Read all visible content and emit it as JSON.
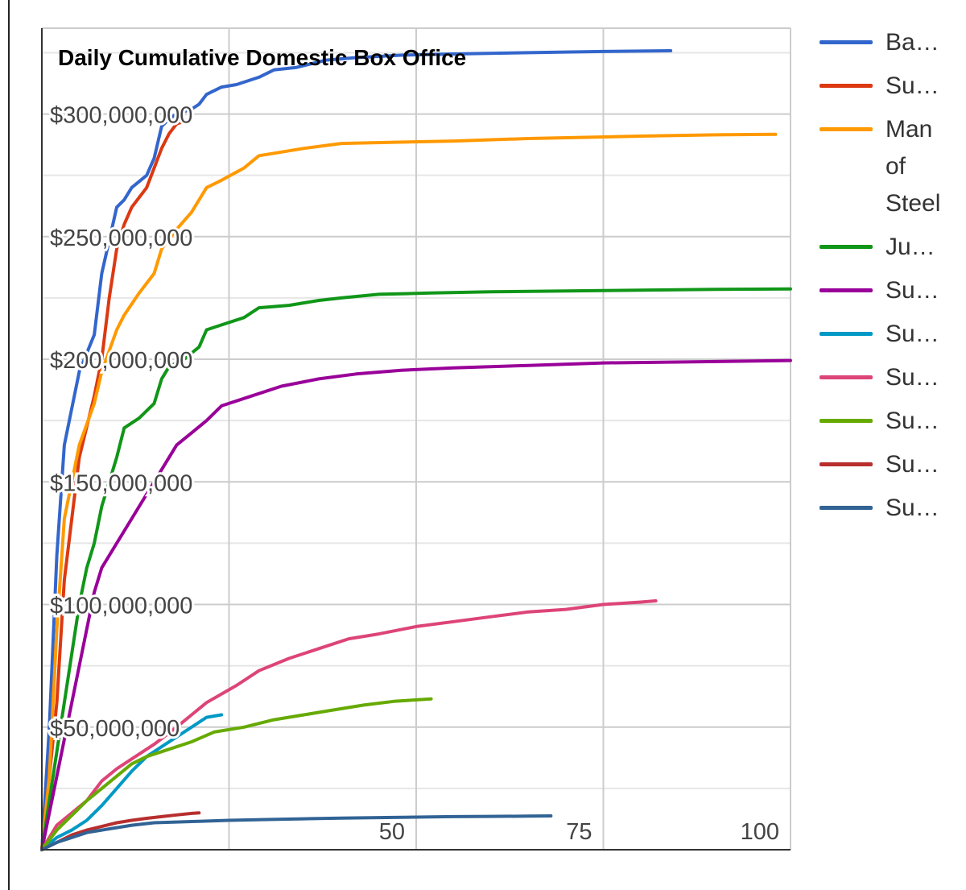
{
  "chart_data": {
    "type": "line",
    "title": "Daily Cumulative Domestic Box Office",
    "xlabel": "",
    "ylabel": "",
    "xlim": [
      0,
      100
    ],
    "ylim": [
      0,
      335000000
    ],
    "x_ticks": [
      {
        "value": 50,
        "label": "50"
      },
      {
        "value": 75,
        "label": "75"
      },
      {
        "value": 100,
        "label": "100"
      }
    ],
    "y_ticks": [
      {
        "value": 50000000,
        "label": "$50,000,000"
      },
      {
        "value": 100000000,
        "label": "$100,000,000"
      },
      {
        "value": 150000000,
        "label": "$150,000,000"
      },
      {
        "value": 200000000,
        "label": "$200,000,000"
      },
      {
        "value": 250000000,
        "label": "$250,000,000"
      },
      {
        "value": 300000000,
        "label": "$300,000,000"
      }
    ],
    "x_gridlines": [
      25,
      50,
      75,
      100
    ],
    "y_gridlines": [
      25000000,
      50000000,
      75000000,
      100000000,
      125000000,
      150000000,
      175000000,
      200000000,
      225000000,
      250000000,
      275000000,
      300000000,
      325000000
    ],
    "grid": true,
    "legend_position": "right",
    "series": [
      {
        "name": "Ba…",
        "color": "#3366cc",
        "points": [
          [
            0,
            0
          ],
          [
            1,
            50000000
          ],
          [
            2,
            120000000
          ],
          [
            3,
            165000000
          ],
          [
            5,
            195000000
          ],
          [
            7,
            210000000
          ],
          [
            8,
            235000000
          ],
          [
            10,
            262000000
          ],
          [
            11,
            265000000
          ],
          [
            12,
            270000000
          ],
          [
            14,
            275000000
          ],
          [
            15,
            282000000
          ],
          [
            16,
            295000000
          ],
          [
            17,
            298000000
          ],
          [
            18,
            300000000
          ],
          [
            20,
            302000000
          ],
          [
            21,
            304000000
          ],
          [
            22,
            308000000
          ],
          [
            24,
            311000000
          ],
          [
            26,
            312000000
          ],
          [
            29,
            315000000
          ],
          [
            31,
            318000000
          ],
          [
            34,
            319000000
          ],
          [
            38,
            322000000
          ],
          [
            42,
            323000000
          ],
          [
            48,
            324000000
          ],
          [
            55,
            324500000
          ],
          [
            65,
            325000000
          ],
          [
            75,
            325500000
          ],
          [
            84,
            325800000
          ]
        ]
      },
      {
        "name": "Su…",
        "color": "#dc3912",
        "points": [
          [
            0,
            0
          ],
          [
            2,
            60000000
          ],
          [
            3,
            110000000
          ],
          [
            5,
            160000000
          ],
          [
            7,
            185000000
          ],
          [
            8,
            200000000
          ],
          [
            9,
            225000000
          ],
          [
            10,
            245000000
          ],
          [
            11,
            255000000
          ],
          [
            12,
            262000000
          ],
          [
            14,
            270000000
          ],
          [
            15,
            278000000
          ],
          [
            16,
            286000000
          ],
          [
            17,
            292000000
          ],
          [
            18,
            296000000
          ],
          [
            19,
            297000000
          ]
        ]
      },
      {
        "name": "Man of Steel",
        "color": "#ff9900",
        "points": [
          [
            0,
            0
          ],
          [
            1,
            30000000
          ],
          [
            2,
            90000000
          ],
          [
            3,
            135000000
          ],
          [
            5,
            165000000
          ],
          [
            7,
            182000000
          ],
          [
            8,
            195000000
          ],
          [
            10,
            212000000
          ],
          [
            11,
            218000000
          ],
          [
            13,
            227000000
          ],
          [
            15,
            235000000
          ],
          [
            16,
            245000000
          ],
          [
            18,
            253000000
          ],
          [
            20,
            260000000
          ],
          [
            22,
            270000000
          ],
          [
            24,
            273000000
          ],
          [
            27,
            278000000
          ],
          [
            29,
            283000000
          ],
          [
            31,
            284000000
          ],
          [
            35,
            286000000
          ],
          [
            40,
            288000000
          ],
          [
            47,
            288500000
          ],
          [
            55,
            289000000
          ],
          [
            65,
            290000000
          ],
          [
            80,
            291000000
          ],
          [
            90,
            291500000
          ],
          [
            98,
            291700000
          ]
        ]
      },
      {
        "name": "Ju…",
        "color": "#109618",
        "points": [
          [
            0,
            0
          ],
          [
            2,
            40000000
          ],
          [
            4,
            80000000
          ],
          [
            5,
            100000000
          ],
          [
            6,
            115000000
          ],
          [
            7,
            125000000
          ],
          [
            8,
            140000000
          ],
          [
            10,
            160000000
          ],
          [
            11,
            172000000
          ],
          [
            13,
            176000000
          ],
          [
            15,
            182000000
          ],
          [
            16,
            192000000
          ],
          [
            17,
            197000000
          ],
          [
            19,
            200000000
          ],
          [
            21,
            205000000
          ],
          [
            22,
            212000000
          ],
          [
            24,
            214000000
          ],
          [
            27,
            217000000
          ],
          [
            29,
            221000000
          ],
          [
            33,
            222000000
          ],
          [
            37,
            224000000
          ],
          [
            40,
            225000000
          ],
          [
            45,
            226500000
          ],
          [
            52,
            227000000
          ],
          [
            60,
            227500000
          ],
          [
            75,
            228000000
          ],
          [
            90,
            228500000
          ],
          [
            100,
            228700000
          ]
        ]
      },
      {
        "name": "Su…",
        "color": "#990099",
        "points": [
          [
            0,
            0
          ],
          [
            1,
            15000000
          ],
          [
            2,
            30000000
          ],
          [
            3,
            45000000
          ],
          [
            4,
            60000000
          ],
          [
            5,
            75000000
          ],
          [
            6,
            90000000
          ],
          [
            7,
            105000000
          ],
          [
            8,
            115000000
          ],
          [
            10,
            125000000
          ],
          [
            12,
            135000000
          ],
          [
            14,
            145000000
          ],
          [
            16,
            155000000
          ],
          [
            18,
            165000000
          ],
          [
            20,
            170000000
          ],
          [
            22,
            175000000
          ],
          [
            24,
            181000000
          ],
          [
            28,
            185000000
          ],
          [
            32,
            189000000
          ],
          [
            37,
            192000000
          ],
          [
            42,
            194000000
          ],
          [
            48,
            195500000
          ],
          [
            55,
            196500000
          ],
          [
            65,
            197500000
          ],
          [
            75,
            198500000
          ],
          [
            88,
            199000000
          ],
          [
            100,
            199500000
          ]
        ]
      },
      {
        "name": "Su…",
        "color": "#0099c6",
        "points": [
          [
            0,
            0
          ],
          [
            2,
            5000000
          ],
          [
            4,
            8000000
          ],
          [
            6,
            12000000
          ],
          [
            8,
            18000000
          ],
          [
            10,
            25000000
          ],
          [
            12,
            32000000
          ],
          [
            14,
            38000000
          ],
          [
            16,
            42000000
          ],
          [
            18,
            46000000
          ],
          [
            20,
            50000000
          ],
          [
            22,
            54000000
          ],
          [
            24,
            55000000
          ]
        ]
      },
      {
        "name": "Su…",
        "color": "#dd4477",
        "points": [
          [
            0,
            0
          ],
          [
            2,
            10000000
          ],
          [
            4,
            15000000
          ],
          [
            6,
            20000000
          ],
          [
            8,
            28000000
          ],
          [
            10,
            33000000
          ],
          [
            12,
            37000000
          ],
          [
            15,
            43000000
          ],
          [
            18,
            50000000
          ],
          [
            20,
            55000000
          ],
          [
            22,
            60000000
          ],
          [
            26,
            67000000
          ],
          [
            29,
            73000000
          ],
          [
            33,
            78000000
          ],
          [
            37,
            82000000
          ],
          [
            41,
            86000000
          ],
          [
            45,
            88000000
          ],
          [
            50,
            91000000
          ],
          [
            55,
            93000000
          ],
          [
            60,
            95000000
          ],
          [
            65,
            97000000
          ],
          [
            70,
            98000000
          ],
          [
            75,
            100000000
          ],
          [
            80,
            101000000
          ],
          [
            82,
            101500000
          ]
        ]
      },
      {
        "name": "Su…",
        "color": "#66aa00",
        "points": [
          [
            0,
            0
          ],
          [
            2,
            8000000
          ],
          [
            4,
            14000000
          ],
          [
            6,
            20000000
          ],
          [
            8,
            25000000
          ],
          [
            10,
            30000000
          ],
          [
            12,
            35000000
          ],
          [
            14,
            38000000
          ],
          [
            17,
            41000000
          ],
          [
            20,
            44000000
          ],
          [
            23,
            48000000
          ],
          [
            27,
            50000000
          ],
          [
            31,
            53000000
          ],
          [
            35,
            55000000
          ],
          [
            39,
            57000000
          ],
          [
            43,
            59000000
          ],
          [
            47,
            60500000
          ],
          [
            52,
            61500000
          ]
        ]
      },
      {
        "name": "Su…",
        "color": "#b82e2e",
        "points": [
          [
            0,
            0
          ],
          [
            2,
            3000000
          ],
          [
            4,
            6000000
          ],
          [
            6,
            8000000
          ],
          [
            8,
            9500000
          ],
          [
            10,
            11000000
          ],
          [
            12,
            12000000
          ],
          [
            14,
            12800000
          ],
          [
            16,
            13500000
          ],
          [
            18,
            14200000
          ],
          [
            20,
            14800000
          ],
          [
            21,
            15000000
          ]
        ]
      },
      {
        "name": "Su…",
        "color": "#316395",
        "points": [
          [
            0,
            0
          ],
          [
            2,
            3000000
          ],
          [
            4,
            5000000
          ],
          [
            6,
            7000000
          ],
          [
            8,
            8000000
          ],
          [
            10,
            9000000
          ],
          [
            12,
            10000000
          ],
          [
            15,
            11000000
          ],
          [
            20,
            11500000
          ],
          [
            25,
            12000000
          ],
          [
            30,
            12300000
          ],
          [
            35,
            12600000
          ],
          [
            40,
            12900000
          ],
          [
            45,
            13100000
          ],
          [
            50,
            13300000
          ],
          [
            55,
            13500000
          ],
          [
            60,
            13600000
          ],
          [
            65,
            13700000
          ],
          [
            68,
            13800000
          ]
        ]
      }
    ]
  }
}
